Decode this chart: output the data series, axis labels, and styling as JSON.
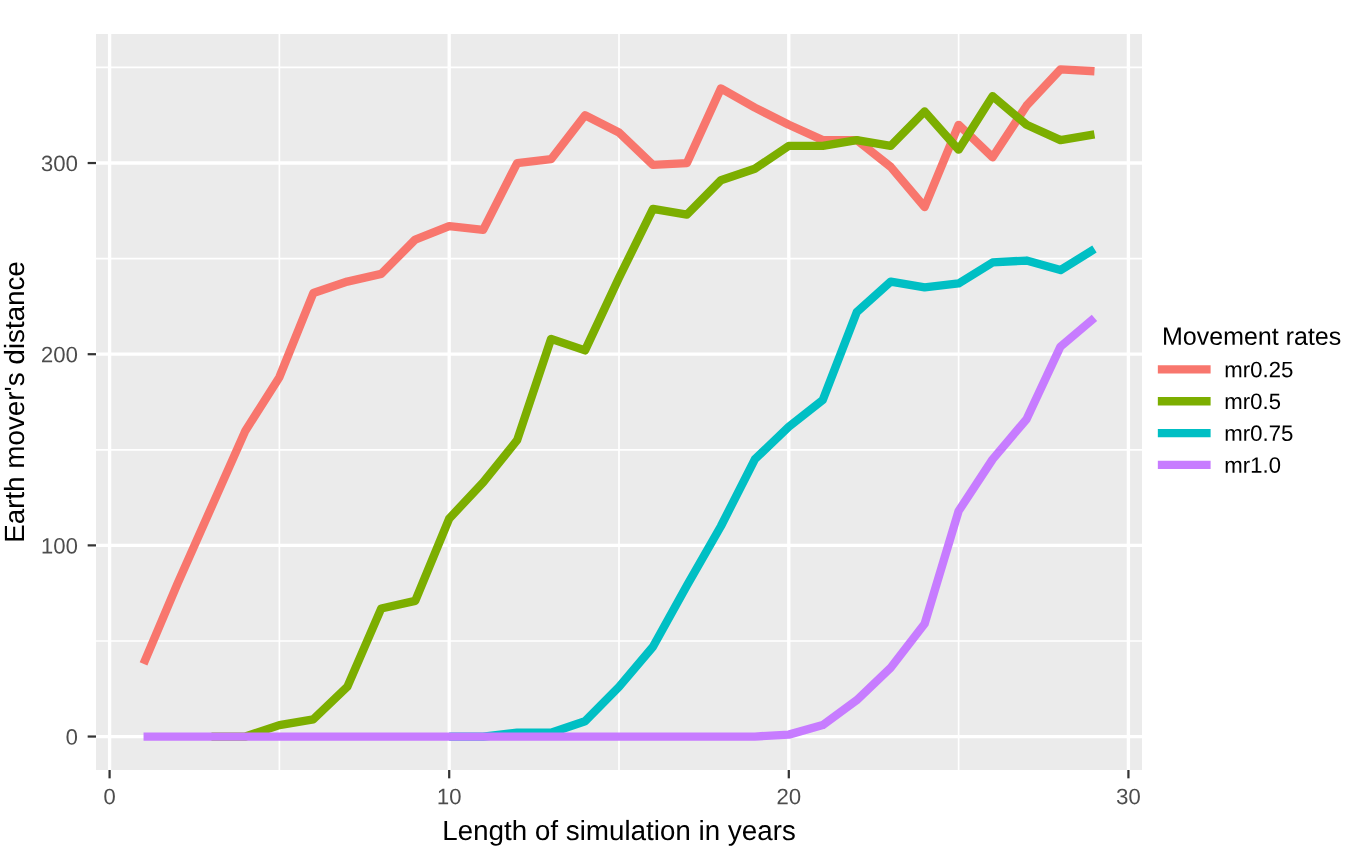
{
  "chart_data": {
    "type": "line",
    "xlabel": "Length of simulation in years",
    "ylabel": "Earth mover's distance",
    "legend_title": "Movement rates",
    "legend": "right",
    "grid": true,
    "marker": "none",
    "line_style": "solid",
    "x": [
      1,
      2,
      3,
      4,
      5,
      6,
      7,
      8,
      9,
      10,
      11,
      12,
      13,
      14,
      15,
      16,
      17,
      18,
      19,
      20,
      21,
      22,
      23,
      24,
      25,
      26,
      27,
      28,
      29
    ],
    "xlim": [
      -0.4,
      30.4
    ],
    "xticks": [
      0,
      10,
      20,
      30
    ],
    "ylim": [
      -17.5,
      367.5
    ],
    "yticks": [
      0,
      100,
      200,
      300
    ],
    "series": [
      {
        "name": "mr0.25",
        "color": "#f8766d",
        "values": [
          38,
          80,
          120,
          160,
          188,
          232,
          238,
          242,
          260,
          267,
          265,
          300,
          302,
          325,
          316,
          299,
          300,
          339,
          329,
          320,
          312,
          312,
          298,
          277,
          320,
          303,
          330,
          349,
          348
        ]
      },
      {
        "name": "mr0.5",
        "color": "#7cae00",
        "values": [
          null,
          null,
          0,
          0,
          6,
          9,
          26,
          67,
          71,
          114,
          133,
          155,
          208,
          202,
          240,
          276,
          273,
          291,
          297,
          309,
          309,
          312,
          309,
          327,
          307,
          335,
          320,
          312,
          315
        ]
      },
      {
        "name": "mr0.75",
        "color": "#00bfc4",
        "values": [
          null,
          null,
          null,
          null,
          null,
          null,
          null,
          null,
          null,
          0,
          0,
          2,
          2,
          8,
          26,
          47,
          79,
          110,
          145,
          162,
          176,
          222,
          238,
          235,
          237,
          248,
          249,
          244,
          255
        ]
      },
      {
        "name": "mr1.0",
        "color": "#c77cff",
        "values": [
          0,
          0,
          0,
          0,
          0,
          0,
          0,
          0,
          0,
          0,
          0,
          0,
          0,
          0,
          0,
          0,
          0,
          0,
          0,
          1,
          6,
          19,
          36,
          59,
          118,
          145,
          166,
          204,
          219
        ]
      }
    ]
  }
}
